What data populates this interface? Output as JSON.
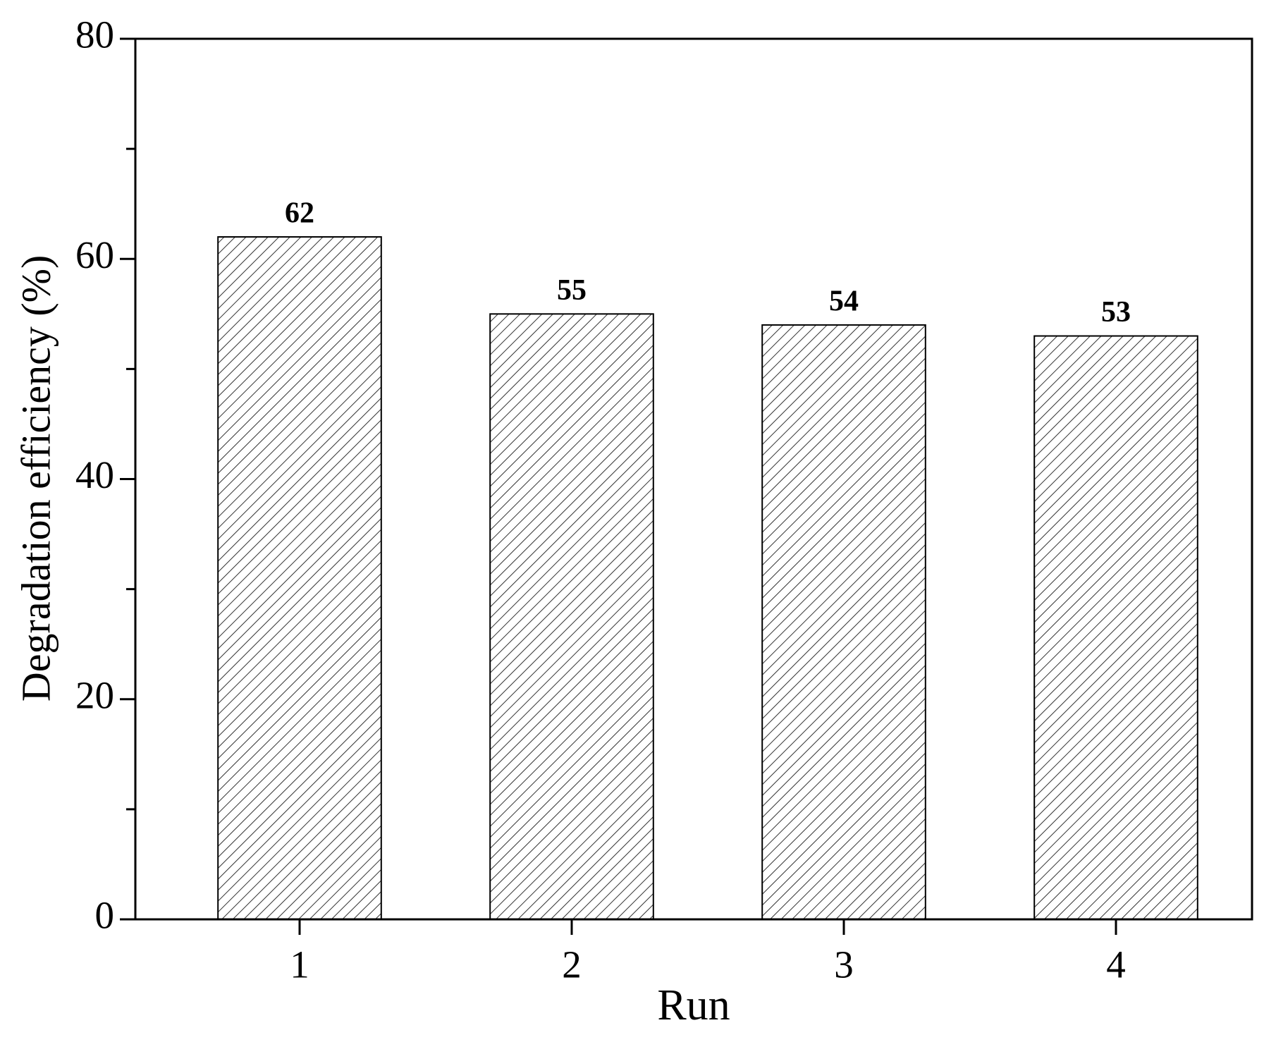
{
  "chart_data": {
    "type": "bar",
    "x_label": "Run",
    "y_label": "Degradation efficiency (%)",
    "categories": [
      "1",
      "2",
      "3",
      "4"
    ],
    "values": [
      62,
      55,
      54,
      53
    ],
    "color": "#333333",
    "hatch": true,
    "ylim": [
      0,
      80
    ],
    "yticks": [
      0,
      20,
      40,
      60,
      80
    ],
    "yminor": [
      10,
      30,
      50,
      70
    ],
    "grid": false
  }
}
